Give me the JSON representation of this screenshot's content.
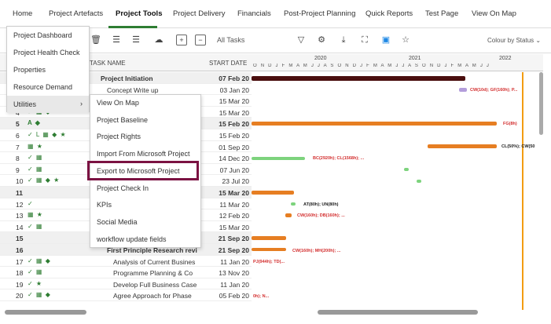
{
  "nav": {
    "tabs": [
      "Home",
      "Project Artefacts",
      "Project Tools",
      "Project Delivery",
      "Financials",
      "Post-Project Planning",
      "Quick Reports",
      "Test Page",
      "View On Map"
    ],
    "active": "Project Tools"
  },
  "toolbar": {
    "search_label": "All Tasks",
    "color_select": "Colour by Status"
  },
  "grid": {
    "col_name": "TASK NAME",
    "col_date": "START DATE",
    "rows": [
      {
        "id": "",
        "name": "Project Initiation",
        "date": "07 Feb 20",
        "summary": true
      },
      {
        "id": "",
        "name": "Concept Write up",
        "date": "03 Jan 20",
        "summary": false
      },
      {
        "id": "",
        "name": "",
        "date": "15 Mar 20",
        "summary": false
      },
      {
        "id": "4",
        "icons": "✓ ▦ ◆",
        "name": "",
        "date": "15 Mar 20",
        "summary": false
      },
      {
        "id": "5",
        "icons": "A ◆",
        "name": "",
        "date": "15 Feb 20",
        "summary": true
      },
      {
        "id": "6",
        "icons": "✓ L ▦ ◆ ★",
        "name": "",
        "date": "15 Feb 20",
        "summary": false
      },
      {
        "id": "7",
        "icons": "▦ ★",
        "name": "",
        "date": "01 Sep 20",
        "summary": false
      },
      {
        "id": "8",
        "icons": "✓ ▦",
        "name": "",
        "date": "14 Dec 20",
        "summary": false
      },
      {
        "id": "9",
        "icons": "✓ ▦",
        "name": "",
        "date": "07 Jun 20",
        "summary": false
      },
      {
        "id": "10",
        "icons": "✓ ▦ ◆ ★",
        "name": "",
        "date": "23 Jul 20",
        "summary": false
      },
      {
        "id": "11",
        "icons": "",
        "name": "",
        "date": "15 Mar 20",
        "summary": true
      },
      {
        "id": "12",
        "icons": "✓",
        "name": "",
        "date": "11 Mar 20",
        "summary": false
      },
      {
        "id": "13",
        "icons": "▦ ★",
        "name": "",
        "date": "12 Feb 20",
        "summary": false
      },
      {
        "id": "14",
        "icons": "✓ ▦",
        "name": "",
        "date": "15 Mar 20",
        "summary": false
      },
      {
        "id": "15",
        "icons": "",
        "name": "",
        "date": "21 Sep 20",
        "summary": true
      },
      {
        "id": "16",
        "icons": "",
        "name": "First Principle Research revi",
        "date": "21 Sep 20",
        "summary": true
      },
      {
        "id": "17",
        "icons": "✓ ▦ ◆",
        "name": "Analysis of Current Busines",
        "date": "11 Jan 20",
        "summary": false
      },
      {
        "id": "18",
        "icons": "✓ ▦",
        "name": "Programme Planning & Co",
        "date": "13 Nov 20",
        "summary": false
      },
      {
        "id": "19",
        "icons": "✓ ★",
        "name": "Develop Full Business Case",
        "date": "11 Jan 20",
        "summary": false
      },
      {
        "id": "20",
        "icons": "✓ ▦ ◆",
        "name": "Agree Approach for Phase",
        "date": "05 Feb 20",
        "summary": false
      }
    ]
  },
  "gantt": {
    "years": [
      "2020",
      "2021",
      "2022"
    ],
    "months": "O N D J F M A M J J A S O N D J F M A M J J A S O N D J F M A M J J",
    "labels": {
      "l1": "CW(10d); GF(160h); P...",
      "l2": "FG(8h)",
      "l3": "CL(50%); CW(50",
      "l4": "BC(2920h); CL(1568h); ...",
      "l5": "AT(80h); UN(80h)",
      "l6": "CW(160h); DB(160h); ...",
      "l7": "CW(160h); MH(200h); ...",
      "l8": "PJ(944h); TD(...",
      "l9": "0h); N..."
    }
  },
  "menu_main": {
    "items": [
      "Project Dashboard",
      "Project Health Check",
      "Properties",
      "Resource Demand",
      "Utilities"
    ],
    "selected": "Utilities"
  },
  "menu_sub": {
    "items": [
      "View On Map",
      "Project Baseline",
      "Project Rights",
      "Import From Microsoft Project",
      "Export to Microsoft Project",
      "Project Check In",
      "KPIs",
      "Social Media",
      "workflow update fields"
    ],
    "highlighted": "Export to Microsoft Project"
  },
  "colors": {
    "accent": "#2e7d32",
    "highlight": "#7b1242",
    "bar": "#e67e22",
    "dark_bar": "#4a0e0e"
  }
}
